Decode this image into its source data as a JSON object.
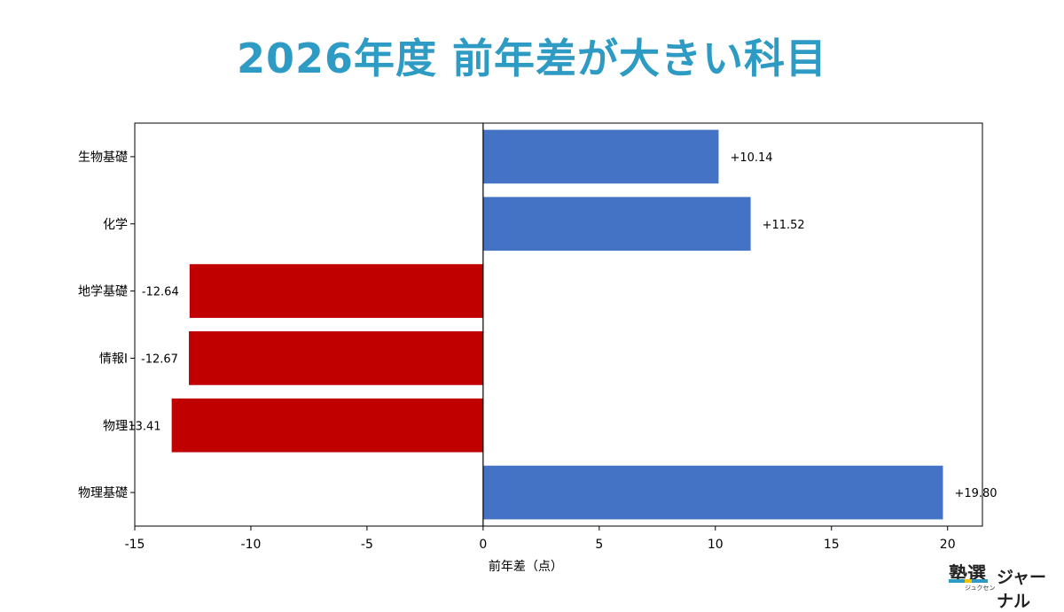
{
  "title": "2026年度 前年差が大きい科目",
  "colors": {
    "title": "#2e9bc4",
    "positive": "#4472c4",
    "negative": "#c00000",
    "axis": "#000000",
    "zero_line": "#000000"
  },
  "logo": {
    "main": "塾選",
    "sub": "ジュクセン",
    "journal": "ジャーナル",
    "strip_colors": [
      "#2e9bc4",
      "#f2c200",
      "#2e9bc4"
    ]
  },
  "chart_data": {
    "type": "bar",
    "orientation": "horizontal",
    "categories": [
      "生物基礎",
      "化学",
      "地学基礎",
      "情報Ⅰ",
      "物理",
      "物理基礎"
    ],
    "values": [
      10.14,
      11.52,
      -12.64,
      -12.67,
      -13.41,
      19.8
    ],
    "value_labels": [
      "+10.14",
      "+11.52",
      "-12.64",
      "-12.67",
      "-13.41",
      "+19.80"
    ],
    "xlabel": "前年差（点）",
    "ylabel": "",
    "xlim": [
      -15,
      21.5
    ],
    "xticks": [
      -15,
      -10,
      -5,
      0,
      5,
      10,
      15,
      20
    ],
    "grid": false,
    "legend": "none"
  }
}
